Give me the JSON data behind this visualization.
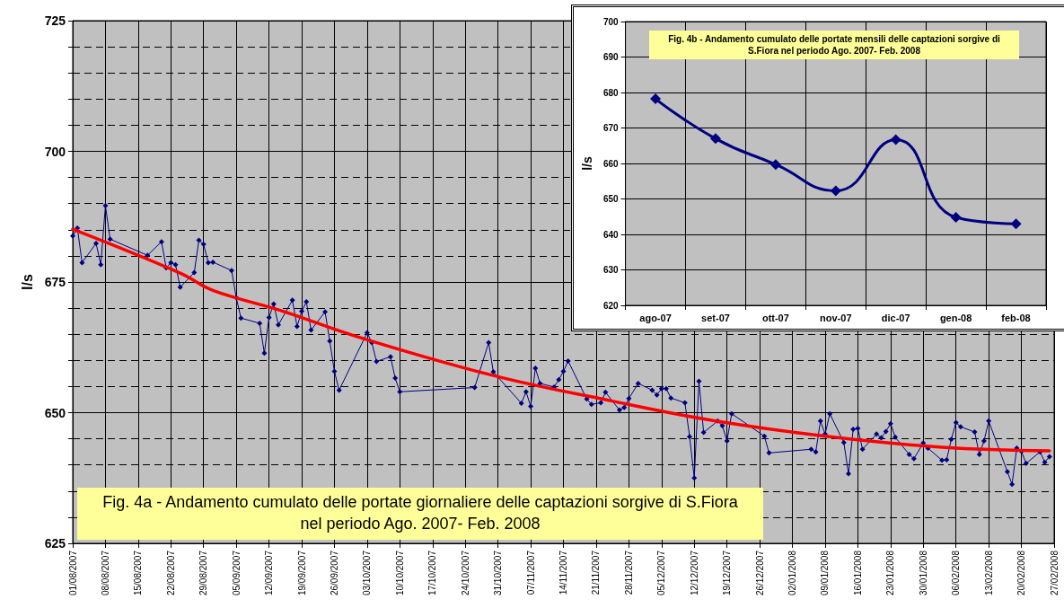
{
  "chart_data": [
    {
      "type": "line",
      "title": "Fig. 4a - Andamento cumulato delle portate giornaliere delle captazioni sorgive di S.Fiora nel periodo Ago. 2007- Feb. 2008",
      "ylabel": "l/s",
      "xlim": [
        "2007-08-01",
        "2008-02-27"
      ],
      "ylim": [
        625,
        725
      ],
      "xticks": [
        {
          "value": "2007-08-01",
          "label": "01/08/2007"
        },
        {
          "value": "2007-08-08",
          "label": "08/08/2007"
        },
        {
          "value": "2007-08-15",
          "label": "15/08/2007"
        },
        {
          "value": "2007-08-22",
          "label": "22/08/2007"
        },
        {
          "value": "2007-08-29",
          "label": "29/08/2007"
        },
        {
          "value": "2007-09-05",
          "label": "05/09/2007"
        },
        {
          "value": "2007-09-12",
          "label": "12/09/2007"
        },
        {
          "value": "2007-09-19",
          "label": "19/09/2007"
        },
        {
          "value": "2007-09-26",
          "label": "26/09/2007"
        },
        {
          "value": "2007-10-03",
          "label": "03/10/2007"
        },
        {
          "value": "2007-10-10",
          "label": "10/10/2007"
        },
        {
          "value": "2007-10-17",
          "label": "17/10/2007"
        },
        {
          "value": "2007-10-24",
          "label": "24/10/2007"
        },
        {
          "value": "2007-10-31",
          "label": "31/10/2007"
        },
        {
          "value": "2007-11-07",
          "label": "07/11/2007"
        },
        {
          "value": "2007-11-14",
          "label": "14/11/2007"
        },
        {
          "value": "2007-11-21",
          "label": "21/11/2007"
        },
        {
          "value": "2007-11-28",
          "label": "28/11/2007"
        },
        {
          "value": "2007-12-05",
          "label": "05/12/2007"
        },
        {
          "value": "2007-12-12",
          "label": "12/12/2007"
        },
        {
          "value": "2007-12-19",
          "label": "19/12/2007"
        },
        {
          "value": "2007-12-26",
          "label": "26/12/2007"
        },
        {
          "value": "2008-01-02",
          "label": "02/01/2008"
        },
        {
          "value": "2008-01-09",
          "label": "09/01/2008"
        },
        {
          "value": "2008-01-16",
          "label": "16/01/2008"
        },
        {
          "value": "2008-01-23",
          "label": "23/01/2008"
        },
        {
          "value": "2008-01-30",
          "label": "30/01/2008"
        },
        {
          "value": "2008-02-06",
          "label": "06/02/2008"
        },
        {
          "value": "2008-02-13",
          "label": "13/02/2008"
        },
        {
          "value": "2008-02-20",
          "label": "20/02/2008"
        },
        {
          "value": "2008-02-27",
          "label": "27/02/2008"
        }
      ],
      "yticks": [
        625,
        {
          "value": 630,
          "label": null
        },
        {
          "value": 635,
          "label": null
        },
        {
          "value": 640,
          "label": null
        },
        {
          "value": 645,
          "label": null
        },
        650,
        {
          "value": 655,
          "label": null
        },
        {
          "value": 660,
          "label": null
        },
        {
          "value": 665,
          "label": null
        },
        {
          "value": 670,
          "label": null
        },
        675,
        {
          "value": 680,
          "label": null
        },
        {
          "value": 685,
          "label": null
        },
        {
          "value": 690,
          "label": null
        },
        {
          "value": 695,
          "label": null
        },
        700,
        {
          "value": 705,
          "label": null
        },
        {
          "value": 710,
          "label": null
        },
        {
          "value": 715,
          "label": null
        },
        {
          "value": 720,
          "label": null
        },
        725
      ],
      "grid": true,
      "marker": "diamond",
      "series": [
        {
          "color": "#000080",
          "x": [
            "2007-08-01",
            "2007-08-02",
            "2007-08-03",
            "2007-08-06",
            "2007-08-07",
            "2007-08-08",
            "2007-08-09",
            "2007-08-17",
            "2007-08-20",
            "2007-08-21",
            "2007-08-22",
            "2007-08-23",
            "2007-08-24",
            "2007-08-27",
            "2007-08-28",
            "2007-08-29",
            "2007-08-30",
            "2007-08-31",
            "2007-09-04",
            "2007-09-05",
            "2007-09-06",
            "2007-09-10",
            "2007-09-11",
            "2007-09-12",
            "2007-09-13",
            "2007-09-14",
            "2007-09-17",
            "2007-09-18",
            "2007-09-19",
            "2007-09-20",
            "2007-09-21",
            "2007-09-24",
            "2007-09-25",
            "2007-09-26",
            "2007-09-27",
            "2007-10-03",
            "2007-10-04",
            "2007-10-05",
            "2007-10-08",
            "2007-10-09",
            "2007-10-10",
            "2007-10-26",
            "2007-10-29",
            "2007-10-30",
            "2007-11-05",
            "2007-11-06",
            "2007-11-07",
            "2007-11-08",
            "2007-11-09",
            "2007-11-12",
            "2007-11-13",
            "2007-11-14",
            "2007-11-15",
            "2007-11-19",
            "2007-11-20",
            "2007-11-22",
            "2007-11-23",
            "2007-11-26",
            "2007-11-27",
            "2007-11-28",
            "2007-11-30",
            "2007-12-03",
            "2007-12-04",
            "2007-12-05",
            "2007-12-06",
            "2007-12-07",
            "2007-12-10",
            "2007-12-11",
            "2007-12-12",
            "2007-12-13",
            "2007-12-14",
            "2007-12-17",
            "2007-12-18",
            "2007-12-19",
            "2007-12-20",
            "2007-12-27",
            "2007-12-28",
            "2008-01-06",
            "2008-01-07",
            "2008-01-08",
            "2008-01-09",
            "2008-01-10",
            "2008-01-13",
            "2008-01-14",
            "2008-01-15",
            "2008-01-16",
            "2008-01-17",
            "2008-01-20",
            "2008-01-21",
            "2008-01-22",
            "2008-01-23",
            "2008-01-24",
            "2008-01-27",
            "2008-01-28",
            "2008-01-30",
            "2008-01-31",
            "2008-02-03",
            "2008-02-04",
            "2008-02-05",
            "2008-02-06",
            "2008-02-07",
            "2008-02-10",
            "2008-02-11",
            "2008-02-12",
            "2008-02-13",
            "2008-02-17",
            "2008-02-18",
            "2008-02-19",
            "2008-02-20",
            "2008-02-21",
            "2008-02-24",
            "2008-02-25",
            "2008-02-26"
          ],
          "values": [
            683.8,
            685.3,
            678.7,
            682.4,
            678.3,
            689.6,
            683.2,
            680.1,
            682.7,
            677.7,
            678.7,
            678.3,
            674.0,
            676.8,
            683.0,
            682.2,
            678.7,
            678.8,
            677.2,
            672.0,
            668.1,
            667.1,
            661.4,
            668.2,
            670.8,
            666.8,
            671.5,
            666.5,
            669.4,
            671.2,
            665.8,
            669.3,
            663.7,
            657.9,
            654.3,
            665.3,
            663.4,
            659.8,
            660.7,
            656.6,
            654.0,
            654.8,
            663.4,
            657.8,
            651.8,
            654.0,
            651.2,
            658.5,
            655.6,
            654.9,
            656.3,
            657.9,
            659.9,
            652.6,
            651.6,
            651.9,
            653.9,
            650.5,
            651.0,
            652.7,
            655.6,
            654.3,
            653.4,
            654.6,
            654.6,
            652.8,
            651.9,
            645.4,
            637.5,
            656.0,
            646.2,
            648.4,
            647.5,
            644.6,
            649.8,
            645.5,
            642.3,
            643.0,
            642.5,
            648.4,
            645.9,
            649.8,
            644.3,
            638.3,
            646.8,
            647.0,
            643.0,
            645.9,
            645.2,
            646.4,
            647.9,
            645.3,
            642.0,
            641.2,
            644.2,
            643.2,
            640.9,
            641.0,
            644.9,
            648.1,
            647.3,
            646.3,
            642.0,
            644.6,
            648.4,
            638.7,
            636.3,
            643.2,
            642.6,
            640.3,
            642.5,
            640.5,
            641.6
          ]
        },
        {
          "type": "line",
          "color": "#ff0000",
          "marker": "none",
          "x": [
            "2007-08-01",
            "2007-08-24",
            "2007-08-31",
            "2007-09-15",
            "2007-10-01",
            "2007-10-30",
            "2007-11-24",
            "2007-12-16",
            "2008-01-10",
            "2008-02-03",
            "2008-02-26"
          ],
          "values": [
            685.1,
            676.7,
            673.4,
            669.4,
            664.5,
            657.1,
            652.3,
            648.5,
            645.4,
            643.4,
            642.7
          ]
        }
      ]
    },
    {
      "type": "line",
      "title": "Fig. 4b - Andamento cumulato delle portate mensili delle captazioni sorgive di S.Fiora nel periodo Ago. 2007- Feb. 2008",
      "ylabel": "l/s",
      "categories": [
        "ago-07",
        "set-07",
        "ott-07",
        "nov-07",
        "dic-07",
        "gen-08",
        "feb-08"
      ],
      "ylim": [
        620,
        700
      ],
      "yticks": [
        620,
        630,
        640,
        650,
        660,
        670,
        680,
        690,
        700
      ],
      "grid": true,
      "marker": "diamond",
      "series": [
        {
          "color": "#000080",
          "values": [
            678.2,
            667.0,
            659.7,
            652.3,
            666.7,
            644.8,
            643.0
          ]
        }
      ]
    }
  ]
}
